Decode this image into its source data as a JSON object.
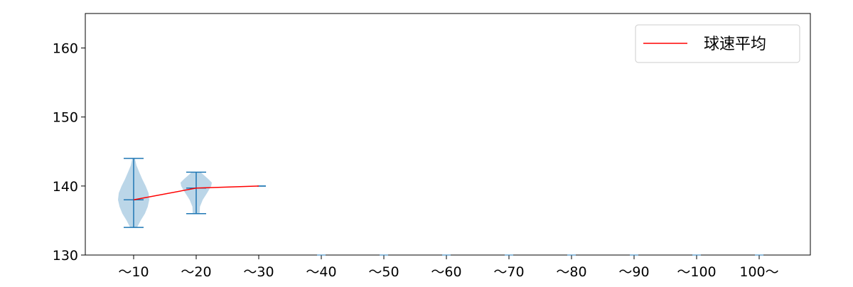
{
  "chart_data": {
    "type": "violin",
    "categories": [
      "～10",
      "～20",
      "～30",
      "～40",
      "～50",
      "～60",
      "～70",
      "～80",
      "～90",
      "～100",
      "100～"
    ],
    "ylim": [
      130,
      165
    ],
    "yticks": [
      130,
      140,
      150,
      160
    ],
    "grid": false,
    "legend": {
      "position": "top-right",
      "entries": [
        {
          "label": "球速平均",
          "color": "#ff0000"
        }
      ]
    },
    "violins": [
      {
        "category": "～10",
        "min": 134,
        "max": 144,
        "mean": 138,
        "density": [
          [
            134,
            0.22
          ],
          [
            135,
            0.45
          ],
          [
            136,
            0.72
          ],
          [
            137,
            0.9
          ],
          [
            138,
            1.0
          ],
          [
            139,
            0.95
          ],
          [
            140,
            0.77
          ],
          [
            141,
            0.55
          ],
          [
            142,
            0.36
          ],
          [
            143,
            0.18
          ],
          [
            144,
            0.08
          ]
        ]
      },
      {
        "category": "～20",
        "min": 136,
        "max": 142,
        "mean": 139.7,
        "density": [
          [
            136,
            0.22
          ],
          [
            137,
            0.24
          ],
          [
            138,
            0.42
          ],
          [
            139,
            0.7
          ],
          [
            140,
            0.96
          ],
          [
            140.5,
            1.0
          ],
          [
            141,
            0.78
          ],
          [
            142,
            0.28
          ]
        ]
      },
      {
        "category": "～30",
        "min": 140,
        "max": 140,
        "mean": 140,
        "density": []
      }
    ],
    "mean_line": {
      "categories": [
        "～10",
        "～20",
        "～30"
      ],
      "values": [
        138,
        139.7,
        140
      ]
    },
    "colors": {
      "violin_fill": "#1f77b4",
      "violin_alpha": 0.3,
      "mean_line": "#ff0000"
    }
  }
}
